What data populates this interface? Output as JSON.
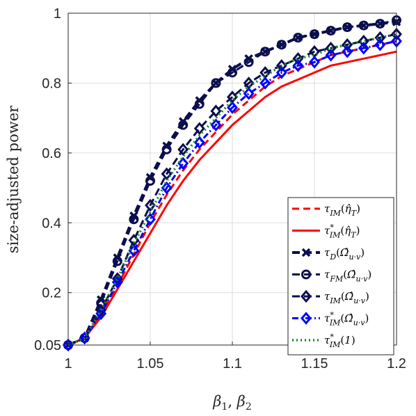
{
  "chart_data": {
    "type": "line",
    "xlabel": "β1, β2",
    "ylabel": "size-adjusted power",
    "xlim": [
      1,
      1.2
    ],
    "ylim": [
      0.05,
      1
    ],
    "x_ticks": [
      "1",
      "1.05",
      "1.1",
      "1.15",
      "1.2"
    ],
    "y_ticks": [
      "0.05",
      "0.2",
      "0.4",
      "0.6",
      "0.8",
      "1"
    ],
    "grid": true,
    "legend_position": "bottom-right",
    "x": [
      1.0,
      1.01,
      1.02,
      1.03,
      1.04,
      1.05,
      1.06,
      1.07,
      1.08,
      1.09,
      1.1,
      1.11,
      1.12,
      1.13,
      1.14,
      1.15,
      1.16,
      1.17,
      1.18,
      1.19,
      1.2
    ],
    "series": [
      {
        "name": "τIM(η̂T)",
        "color": "#ff0000",
        "dash": "10,6",
        "marker": "none",
        "width": 3,
        "values": [
          0.05,
          0.07,
          0.14,
          0.22,
          0.31,
          0.4,
          0.48,
          0.55,
          0.61,
          0.66,
          0.71,
          0.75,
          0.79,
          0.82,
          0.84,
          0.86,
          0.88,
          0.89,
          0.9,
          0.91,
          0.92
        ]
      },
      {
        "name": "τ*IM(η̂T)",
        "color": "#ff0000",
        "dash": "",
        "marker": "none",
        "width": 3,
        "values": [
          0.05,
          0.07,
          0.13,
          0.21,
          0.29,
          0.37,
          0.45,
          0.52,
          0.58,
          0.63,
          0.68,
          0.72,
          0.76,
          0.79,
          0.81,
          0.83,
          0.85,
          0.86,
          0.87,
          0.88,
          0.89
        ]
      },
      {
        "name": "τD(Ω̂u·v)",
        "color": "#0b0e4f",
        "dash": "11,6",
        "marker": "x",
        "width": 4,
        "values": [
          0.05,
          0.07,
          0.18,
          0.3,
          0.42,
          0.53,
          0.62,
          0.69,
          0.75,
          0.8,
          0.84,
          0.87,
          0.89,
          0.91,
          0.93,
          0.94,
          0.95,
          0.96,
          0.965,
          0.97,
          0.975
        ]
      },
      {
        "name": "τFM(Ω̂u·v)",
        "color": "#0b0e4f",
        "dash": "11,6",
        "marker": "circle",
        "width": 3,
        "values": [
          0.05,
          0.07,
          0.17,
          0.29,
          0.41,
          0.52,
          0.61,
          0.68,
          0.74,
          0.8,
          0.83,
          0.86,
          0.89,
          0.91,
          0.93,
          0.94,
          0.95,
          0.96,
          0.965,
          0.97,
          0.98
        ]
      },
      {
        "name": "τIM(Ω̂u·v)",
        "color": "#0b0e4f",
        "dash": "11,6",
        "marker": "diamond",
        "width": 3,
        "values": [
          0.05,
          0.07,
          0.15,
          0.24,
          0.35,
          0.45,
          0.54,
          0.61,
          0.67,
          0.72,
          0.76,
          0.8,
          0.83,
          0.85,
          0.87,
          0.89,
          0.9,
          0.91,
          0.92,
          0.93,
          0.94
        ]
      },
      {
        "name": "τ*IM(Ω̂u·v)",
        "color": "#0000ff",
        "dash": "9,4,2,4",
        "marker": "diamond",
        "width": 3,
        "values": [
          0.05,
          0.07,
          0.14,
          0.23,
          0.32,
          0.41,
          0.5,
          0.57,
          0.63,
          0.68,
          0.73,
          0.77,
          0.8,
          0.83,
          0.85,
          0.86,
          0.88,
          0.89,
          0.9,
          0.91,
          0.92
        ]
      },
      {
        "name": "τ*IM(1)",
        "color": "#1c8a1c",
        "dash": "2,4",
        "marker": "none",
        "width": 3.5,
        "values": [
          0.05,
          0.07,
          0.15,
          0.24,
          0.34,
          0.43,
          0.52,
          0.59,
          0.65,
          0.7,
          0.75,
          0.79,
          0.82,
          0.85,
          0.87,
          0.88,
          0.9,
          0.91,
          0.92,
          0.93,
          0.94
        ]
      }
    ]
  }
}
